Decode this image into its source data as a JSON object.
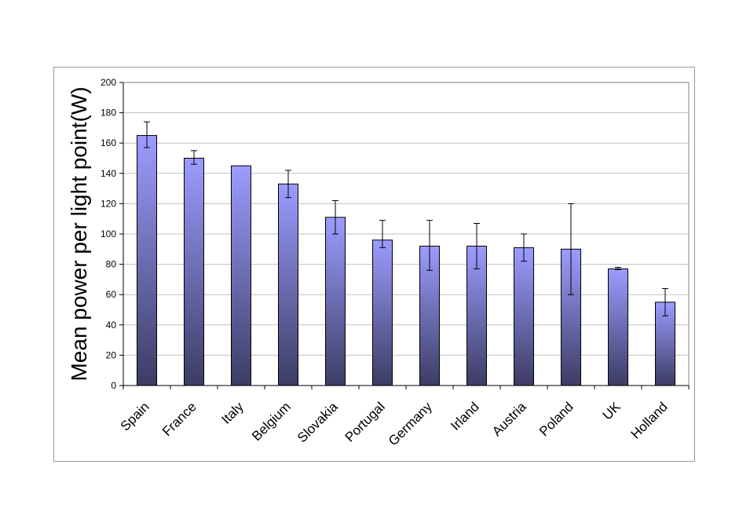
{
  "chart_data": {
    "type": "bar",
    "title": "",
    "xlabel": "",
    "ylabel": "Mean power per light point(W)",
    "ylim": [
      0,
      200
    ],
    "yticks": [
      0,
      20,
      40,
      60,
      80,
      100,
      120,
      140,
      160,
      180,
      200
    ],
    "grid": true,
    "legend": "none",
    "categories": [
      "Spain",
      "France",
      "Italy",
      "Belgium",
      "Slovakia",
      "Portugal",
      "Germany",
      "Irland",
      "Austria",
      "Poland",
      "UK",
      "Holland"
    ],
    "values": [
      165,
      150,
      145,
      133,
      111,
      96,
      92,
      92,
      91,
      90,
      77,
      55
    ],
    "error_bars": [
      [
        157,
        174
      ],
      [
        146,
        155
      ],
      null,
      [
        124,
        142
      ],
      [
        100,
        122
      ],
      [
        91,
        109
      ],
      [
        76,
        109
      ],
      [
        77,
        107
      ],
      [
        82,
        100
      ],
      [
        60,
        120
      ],
      [
        76.5,
        78
      ],
      [
        46,
        64
      ]
    ],
    "colors": {
      "bar_top": "#9c9cff",
      "bar_bottom": "#3c3c64",
      "grid": "#c0c0c0",
      "axis": "#808080",
      "error": "#000000"
    }
  }
}
